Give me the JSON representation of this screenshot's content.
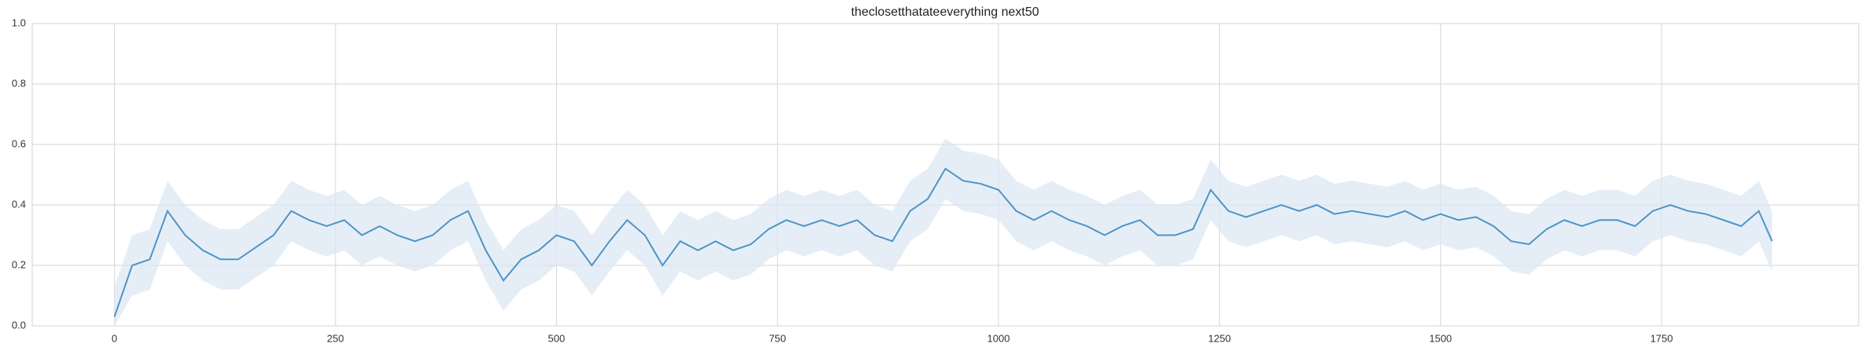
{
  "chart_data": {
    "type": "line",
    "title": "theclosetthatateeverything next50",
    "x": [
      0,
      20,
      40,
      60,
      80,
      100,
      120,
      140,
      160,
      180,
      200,
      220,
      240,
      260,
      280,
      300,
      320,
      340,
      360,
      380,
      400,
      420,
      440,
      460,
      480,
      500,
      520,
      540,
      560,
      580,
      600,
      620,
      640,
      660,
      680,
      700,
      720,
      740,
      760,
      780,
      800,
      820,
      840,
      860,
      880,
      900,
      920,
      940,
      960,
      980,
      1000,
      1020,
      1040,
      1060,
      1080,
      1100,
      1120,
      1140,
      1160,
      1180,
      1200,
      1220,
      1240,
      1260,
      1280,
      1300,
      1320,
      1340,
      1360,
      1380,
      1400,
      1420,
      1440,
      1460,
      1480,
      1500,
      1520,
      1540,
      1560,
      1580,
      1600,
      1620,
      1640,
      1660,
      1680,
      1700,
      1720,
      1740,
      1760,
      1780,
      1800,
      1820,
      1840,
      1860,
      1875
    ],
    "values": [
      0.03,
      0.2,
      0.22,
      0.38,
      0.3,
      0.25,
      0.22,
      0.22,
      0.26,
      0.3,
      0.38,
      0.35,
      0.33,
      0.35,
      0.3,
      0.33,
      0.3,
      0.28,
      0.3,
      0.35,
      0.38,
      0.25,
      0.15,
      0.22,
      0.25,
      0.3,
      0.28,
      0.2,
      0.28,
      0.35,
      0.3,
      0.2,
      0.28,
      0.25,
      0.28,
      0.25,
      0.27,
      0.32,
      0.35,
      0.33,
      0.35,
      0.33,
      0.35,
      0.3,
      0.28,
      0.38,
      0.42,
      0.52,
      0.48,
      0.47,
      0.45,
      0.38,
      0.35,
      0.38,
      0.35,
      0.33,
      0.3,
      0.33,
      0.35,
      0.3,
      0.3,
      0.32,
      0.45,
      0.38,
      0.36,
      0.38,
      0.4,
      0.38,
      0.4,
      0.37,
      0.38,
      0.37,
      0.36,
      0.38,
      0.35,
      0.37,
      0.35,
      0.36,
      0.33,
      0.28,
      0.27,
      0.32,
      0.35,
      0.33,
      0.35,
      0.35,
      0.33,
      0.38,
      0.4,
      0.38,
      0.37,
      0.35,
      0.33,
      0.38,
      0.28
    ],
    "upper": [
      0.13,
      0.3,
      0.32,
      0.48,
      0.4,
      0.35,
      0.32,
      0.32,
      0.36,
      0.4,
      0.48,
      0.45,
      0.43,
      0.45,
      0.4,
      0.43,
      0.4,
      0.38,
      0.4,
      0.45,
      0.48,
      0.35,
      0.25,
      0.32,
      0.35,
      0.4,
      0.38,
      0.3,
      0.38,
      0.45,
      0.4,
      0.3,
      0.38,
      0.35,
      0.38,
      0.35,
      0.37,
      0.42,
      0.45,
      0.43,
      0.45,
      0.43,
      0.45,
      0.4,
      0.38,
      0.48,
      0.52,
      0.62,
      0.58,
      0.57,
      0.55,
      0.48,
      0.45,
      0.48,
      0.45,
      0.43,
      0.4,
      0.43,
      0.45,
      0.4,
      0.4,
      0.42,
      0.55,
      0.48,
      0.46,
      0.48,
      0.5,
      0.48,
      0.5,
      0.47,
      0.48,
      0.47,
      0.46,
      0.48,
      0.45,
      0.47,
      0.45,
      0.46,
      0.43,
      0.38,
      0.37,
      0.42,
      0.45,
      0.43,
      0.45,
      0.45,
      0.43,
      0.48,
      0.5,
      0.48,
      0.47,
      0.45,
      0.43,
      0.48,
      0.38
    ],
    "lower": [
      0,
      0.1,
      0.12,
      0.28,
      0.2,
      0.15,
      0.12,
      0.12,
      0.16,
      0.2,
      0.28,
      0.25,
      0.23,
      0.25,
      0.2,
      0.23,
      0.2,
      0.18,
      0.2,
      0.25,
      0.28,
      0.15,
      0.05,
      0.12,
      0.15,
      0.2,
      0.18,
      0.1,
      0.18,
      0.25,
      0.2,
      0.1,
      0.18,
      0.15,
      0.18,
      0.15,
      0.17,
      0.22,
      0.25,
      0.23,
      0.25,
      0.23,
      0.25,
      0.2,
      0.18,
      0.28,
      0.32,
      0.42,
      0.38,
      0.37,
      0.35,
      0.28,
      0.25,
      0.28,
      0.25,
      0.23,
      0.2,
      0.23,
      0.25,
      0.2,
      0.2,
      0.22,
      0.35,
      0.28,
      0.26,
      0.28,
      0.3,
      0.28,
      0.3,
      0.27,
      0.28,
      0.27,
      0.26,
      0.28,
      0.25,
      0.27,
      0.25,
      0.26,
      0.23,
      0.18,
      0.17,
      0.22,
      0.25,
      0.23,
      0.25,
      0.25,
      0.23,
      0.28,
      0.3,
      0.28,
      0.27,
      0.25,
      0.23,
      0.28,
      0.18
    ],
    "color": "#4f94c4",
    "band_color": "#dae7f4",
    "xlim": [
      -93,
      1973
    ],
    "ylim": [
      0,
      1
    ],
    "xticks": [
      0,
      250,
      500,
      750,
      1000,
      1250,
      1500,
      1750
    ],
    "yticks": [
      {
        "value": 0,
        "label": "0.0"
      },
      {
        "value": 0.2,
        "label": "0.2"
      },
      {
        "value": 0.4,
        "label": "0.4"
      },
      {
        "value": 0.6,
        "label": "0.6"
      },
      {
        "value": 0.8,
        "label": "0.8"
      },
      {
        "value": 1,
        "label": "1.0"
      }
    ],
    "grid": true
  }
}
